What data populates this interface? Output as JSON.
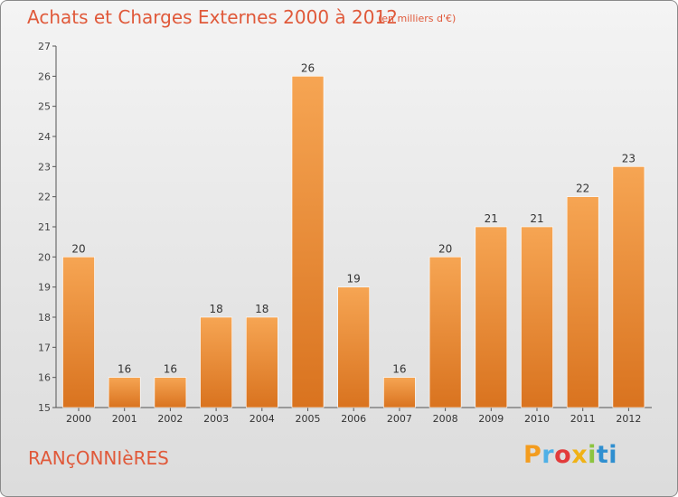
{
  "header": {
    "title": "Achats et Charges Externes 2000 à 2012",
    "unit": "(en milliers d'€)"
  },
  "footer": {
    "commune": "RANçONNIèRES",
    "logo_letters": [
      "P",
      "r",
      "o",
      "x",
      "i",
      "ti"
    ]
  },
  "colors": {
    "bar_light": "#f6a553",
    "bar_dark": "#d9731f",
    "title": "#e0593a",
    "axis": "#555555"
  },
  "chart_data": {
    "type": "bar",
    "title": "Achats et Charges Externes 2000 à 2012",
    "categories": [
      "2000",
      "2001",
      "2002",
      "2003",
      "2004",
      "2005",
      "2006",
      "2007",
      "2008",
      "2009",
      "2010",
      "2011",
      "2012"
    ],
    "values": [
      20,
      16,
      16,
      18,
      18,
      26,
      19,
      16,
      20,
      21,
      21,
      22,
      23
    ],
    "ylim": [
      15,
      27
    ],
    "yticks": [
      15,
      16,
      17,
      18,
      19,
      20,
      21,
      22,
      23,
      24,
      25,
      26,
      27
    ],
    "grid": false,
    "legend": "none",
    "data_labels": true
  }
}
